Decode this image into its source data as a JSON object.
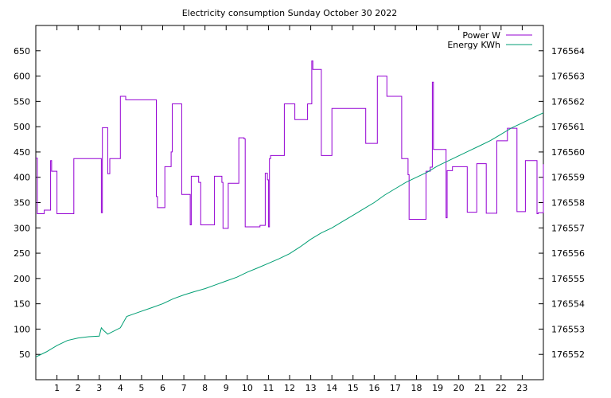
{
  "chart_data": {
    "type": "line",
    "title": "Electricity consumption Sunday October 30 2022",
    "xlabel": "",
    "ylabel": "",
    "y2label": "",
    "xlim": [
      0,
      24
    ],
    "ylim": [
      0,
      700
    ],
    "y2lim": [
      176551,
      176565
    ],
    "x_ticks": [
      1,
      2,
      3,
      4,
      5,
      6,
      7,
      8,
      9,
      10,
      11,
      12,
      13,
      14,
      15,
      16,
      17,
      18,
      19,
      20,
      21,
      22,
      23
    ],
    "y_ticks": [
      50,
      100,
      150,
      200,
      250,
      300,
      350,
      400,
      450,
      500,
      550,
      600,
      650
    ],
    "y2_ticks": [
      176552,
      176553,
      176554,
      176555,
      176556,
      176557,
      176558,
      176559,
      176560,
      176561,
      176562,
      176563,
      176564
    ],
    "legend_position": "top-right",
    "grid": false,
    "series": [
      {
        "name": "Power W",
        "axis": "left",
        "color": "#9400d3",
        "step": true,
        "x": [
          0,
          0.07,
          0.4,
          0.7,
          0.75,
          1.0,
          1.04,
          1.8,
          3.05,
          3.1,
          3.15,
          3.4,
          3.5,
          3.9,
          4.0,
          4.25,
          5.7,
          5.75,
          6.1,
          6.15,
          6.4,
          6.45,
          6.9,
          7.3,
          7.35,
          7.7,
          7.8,
          8.4,
          8.45,
          8.8,
          8.85,
          9.1,
          9.55,
          9.6,
          9.85,
          9.9,
          10.5,
          10.6,
          10.85,
          10.95,
          11.0,
          11.05,
          11.1,
          11.7,
          11.75,
          12.25,
          12.8,
          12.85,
          13.05,
          13.1,
          13.5,
          13.9,
          14.0,
          15.2,
          15.6,
          16.15,
          16.6,
          17.3,
          17.35,
          17.6,
          17.65,
          18.35,
          18.45,
          18.65,
          18.75,
          18.8,
          19.35,
          19.4,
          19.45,
          19.7,
          20.4,
          20.5,
          20.85,
          21.3,
          21.75,
          21.8,
          22.2,
          22.3,
          22.5,
          22.75,
          23.15,
          23.7,
          23.75,
          24.0
        ],
        "values": [
          438,
          328,
          335,
          433,
          412,
          328,
          328,
          437,
          437,
          330,
          498,
          407,
          437,
          437,
          560,
          553,
          362,
          340,
          421,
          421,
          450,
          545,
          366,
          306,
          402,
          390,
          306,
          306,
          402,
          390,
          299,
          388,
          388,
          478,
          476,
          302,
          302,
          305,
          408,
          395,
          302,
          437,
          443,
          443,
          545,
          514,
          514,
          545,
          630,
          613,
          443,
          443,
          536,
          536,
          467,
          600,
          560,
          437,
          437,
          405,
          317,
          317,
          412,
          420,
          588,
          455,
          455,
          320,
          413,
          421,
          331,
          331,
          427,
          329,
          329,
          472,
          472,
          497,
          497,
          332,
          433,
          328,
          330,
          426
        ]
      },
      {
        "name": "Energy KWh",
        "axis": "right",
        "color": "#009e73",
        "step": false,
        "x": [
          0,
          0.5,
          1.0,
          1.5,
          2.0,
          2.5,
          3.0,
          3.1,
          3.2,
          3.4,
          4.0,
          4.3,
          4.8,
          5.5,
          6.0,
          6.5,
          7.0,
          7.5,
          8.0,
          8.5,
          9.0,
          9.5,
          10.0,
          10.5,
          11.0,
          11.5,
          12.0,
          12.5,
          13.0,
          13.5,
          14.0,
          14.5,
          15.0,
          15.5,
          16.0,
          16.5,
          17.0,
          17.5,
          18.0,
          18.5,
          19.0,
          19.5,
          20.0,
          20.5,
          21.0,
          21.5,
          22.0,
          22.5,
          23.0,
          23.5,
          24.0
        ],
        "values": [
          176551.9,
          176552.1,
          176552.35,
          176552.55,
          176552.65,
          176552.7,
          176552.72,
          176553.05,
          176552.95,
          176552.8,
          176553.05,
          176553.5,
          176553.65,
          176553.85,
          176554.0,
          176554.2,
          176554.35,
          176554.48,
          176554.6,
          176554.75,
          176554.9,
          176555.05,
          176555.25,
          176555.42,
          176555.6,
          176555.78,
          176555.98,
          176556.25,
          176556.55,
          176556.8,
          176557.0,
          176557.25,
          176557.5,
          176557.75,
          176558.0,
          176558.3,
          176558.55,
          176558.8,
          176559.0,
          176559.2,
          176559.45,
          176559.65,
          176559.85,
          176560.05,
          176560.25,
          176560.45,
          176560.7,
          176560.95,
          176561.15,
          176561.35,
          176561.55
        ]
      }
    ]
  }
}
